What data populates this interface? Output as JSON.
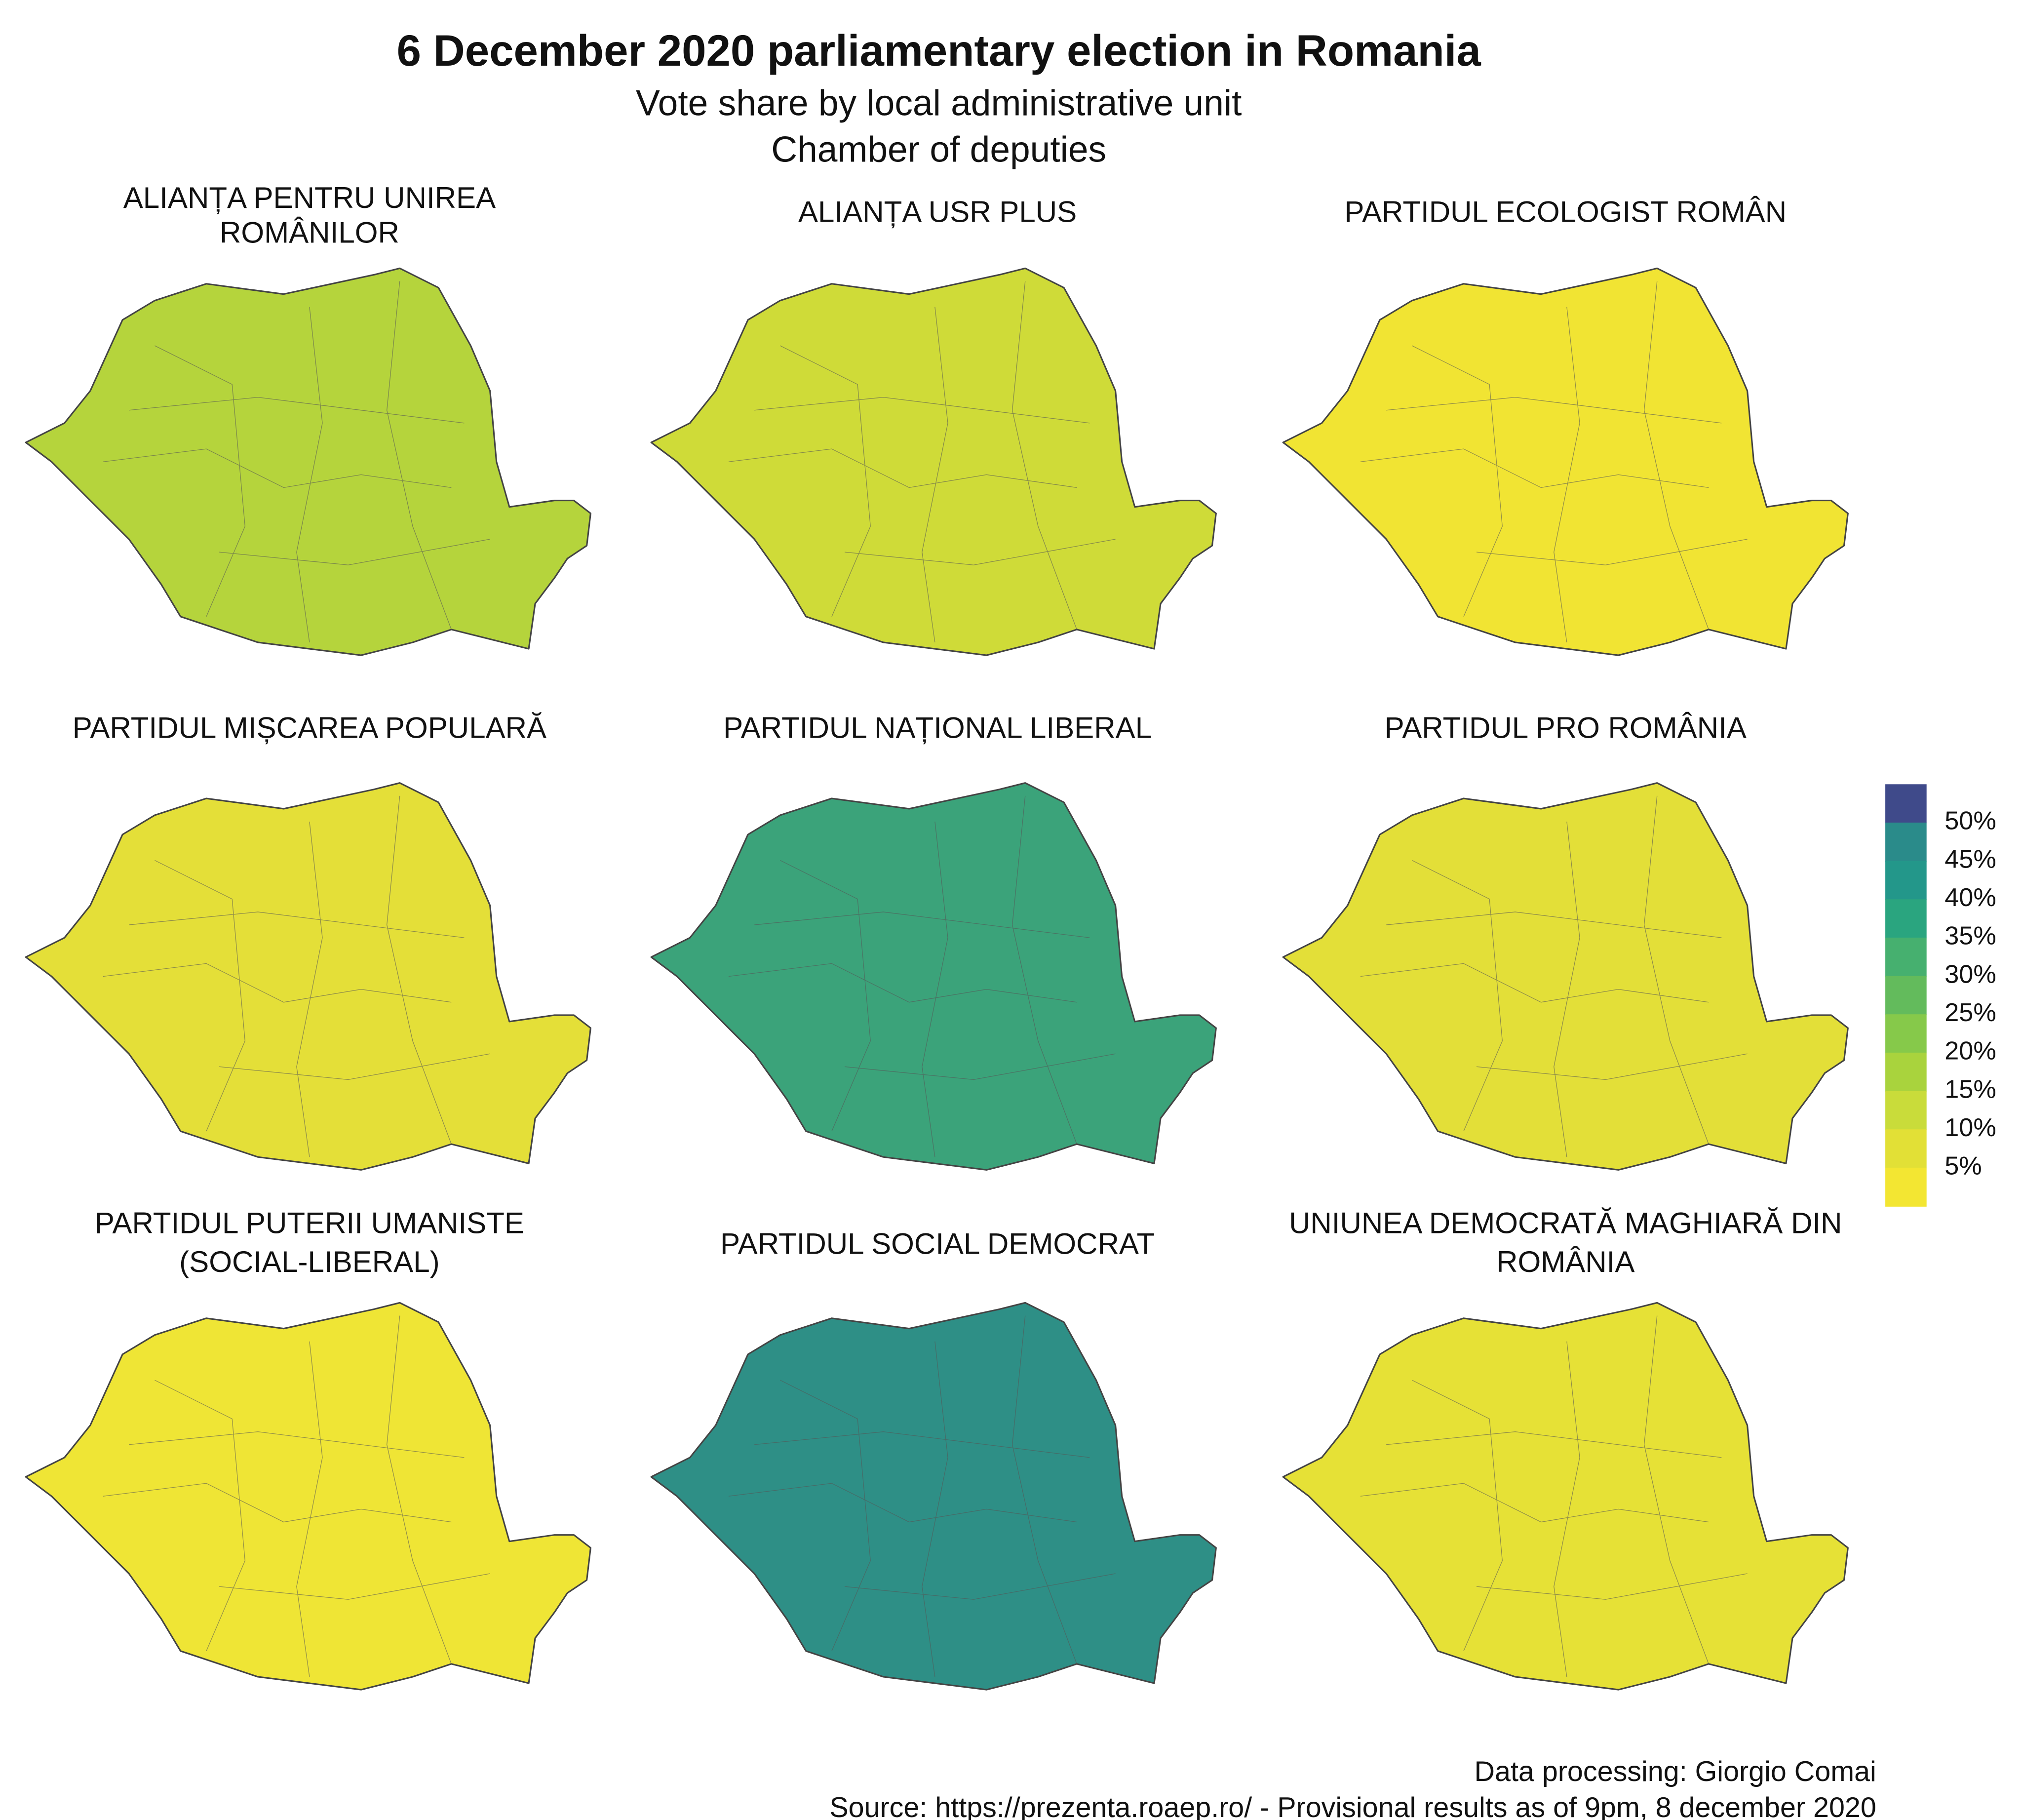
{
  "title": "6 December 2020 parliamentary election in Romania",
  "subtitle": [
    "Vote share by local administrative unit",
    "Chamber of deputies"
  ],
  "panels": [
    {
      "title": [
        "ALIANȚA PENTRU UNIREA",
        "ROMÂNILOR"
      ],
      "color": "#b5d43c"
    },
    {
      "title": [
        "ALIANȚA USR PLUS"
      ],
      "color": "#cfdb38"
    },
    {
      "title": [
        "PARTIDUL ECOLOGIST ROMÂN"
      ],
      "color": "#f1e433"
    },
    {
      "title": [
        "PARTIDUL MIȘCAREA POPULARĂ"
      ],
      "color": "#e4df38"
    },
    {
      "title": [
        "PARTIDUL NAȚIONAL LIBERAL"
      ],
      "color": "#3ba37a"
    },
    {
      "title": [
        "PARTIDUL PRO ROMÂNIA"
      ],
      "color": "#e3df38"
    },
    {
      "title": [
        "PARTIDUL PUTERII UMANISTE",
        "(SOCIAL-LIBERAL)"
      ],
      "color": "#efe535"
    },
    {
      "title": [
        "PARTIDUL SOCIAL DEMOCRAT"
      ],
      "color": "#2e8f86"
    },
    {
      "title": [
        "UNIUNEA DEMOCRATĂ MAGHIARĂ DIN",
        "ROMÂNIA"
      ],
      "color": "#e6e136"
    }
  ],
  "legend": {
    "colors": [
      "#3f4a8a",
      "#2a8b8a",
      "#23978a",
      "#2aa57f",
      "#46b06f",
      "#63bb5c",
      "#86c94a",
      "#a9d33d",
      "#c9dc3a",
      "#e2e036",
      "#f3e632"
    ],
    "labels": [
      "50%",
      "45%",
      "40%",
      "35%",
      "30%",
      "25%",
      "20%",
      "15%",
      "10%",
      "5%"
    ]
  },
  "caption": [
    "Data processing: Giorgio Comai",
    "Source: https://prezenta.roaep.ro/ - Provisional results as of 9pm, 8 december 2020"
  ]
}
